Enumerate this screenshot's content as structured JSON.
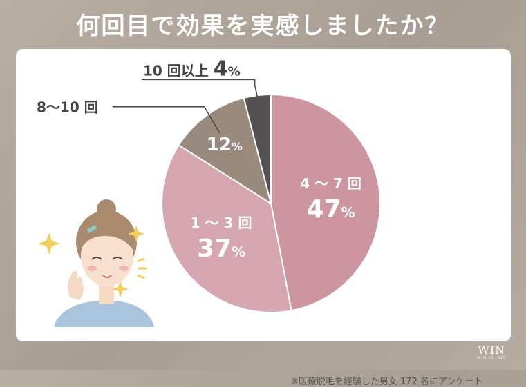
{
  "title": "何回目で効果を実感しましたか？",
  "note": "※医療脱毛を経験した男女 172 名にアンケート",
  "logo": {
    "mark": "WIN",
    "sub": "WIN CLINIC"
  },
  "chart_data": {
    "type": "pie",
    "title": "何回目で効果を実感しましたか？",
    "slices": [
      {
        "label": "4 〜 7 回",
        "value": 47,
        "pct": "47",
        "color": "#cc95a0"
      },
      {
        "label": "1 〜 3 回",
        "value": 37,
        "pct": "37",
        "color": "#d6a7b0"
      },
      {
        "label": "8〜10 回",
        "value": 12,
        "pct": "12",
        "color": "#9a8a7e"
      },
      {
        "label": "10 回以上",
        "value": 4,
        "pct": "4",
        "color": "#555152"
      }
    ],
    "unit": "%"
  }
}
